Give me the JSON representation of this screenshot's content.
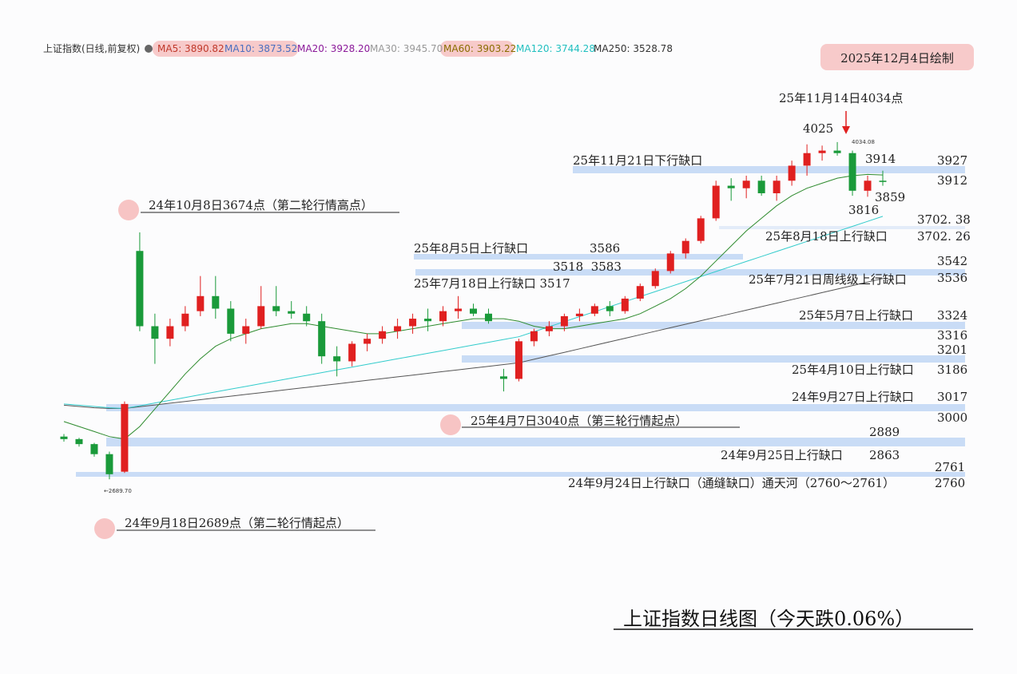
{
  "chart_data": {
    "type": "candlestick",
    "title": "上证指数日线图（今天跌0.06%）",
    "date_note": "2025年12月4日绘制",
    "indicator_legend": [
      {
        "text": "上证指数(日线,前复权)",
        "color": "#333333"
      },
      {
        "text": "MA5: 3890.82",
        "color": "#c0392b"
      },
      {
        "text": "MA10: 3873.52",
        "color": "#4a6fc0"
      },
      {
        "text": "MA20: 3928.20",
        "color": "#8b1a9a"
      },
      {
        "text": "MA30: 3945.70",
        "color": "#999999"
      },
      {
        "text": "MA60: 3903.22",
        "color": "#8a6d00"
      },
      {
        "text": "MA120: 3744.28",
        "color": "#22c0c0"
      },
      {
        "text": "MA250: 3528.78",
        "color": "#333333"
      }
    ],
    "annotations": [
      "25年11月14日4034点",
      "4025",
      "25年11月21日下行缺口",
      "3914",
      "3927",
      "3912",
      "3859",
      "3816",
      "24年10月8日3674点（第二轮行情高点）",
      "3702. 38",
      "25年8月18日上行缺口",
      "3702. 26",
      "25年8月5日上行缺口",
      "3586",
      "3518  3583",
      "3542",
      "25年7月18日上行缺口 3517",
      "25年7月21日周线级上行缺口",
      "3536",
      "25年5月7日上行缺口",
      "3324",
      "3316",
      "3201",
      "25年4月10日上行缺口",
      "3186",
      "24年9月27日上行缺口",
      "3017",
      "25年4月7日3040点（第三轮行情起点）",
      "3000",
      "2889",
      "24年9月25日上行缺口",
      "2863",
      "2761",
      "24年9月24日上行缺口（通缝缺口）通天河（2760～2761）",
      "2760",
      "24年9月18日2689点（第二轮行情起点）",
      "←2689.70",
      "4034.08"
    ],
    "categories": [
      null,
      null,
      null,
      null,
      null,
      null,
      null,
      null,
      null,
      null,
      null,
      null,
      null,
      null,
      null,
      null,
      null,
      null,
      null,
      null,
      null,
      null,
      null,
      null,
      null,
      null,
      null,
      null,
      null,
      null,
      null,
      null,
      null,
      null,
      null,
      null,
      null,
      null,
      null,
      null,
      null,
      null,
      null,
      null,
      null,
      null,
      null,
      null,
      null,
      null,
      null,
      null,
      null,
      null,
      null
    ],
    "open": [
      2860,
      2850,
      2830,
      2790,
      2720,
      3600,
      3300,
      3250,
      3300,
      3360,
      3420,
      3370,
      3270,
      3300,
      3380,
      3360,
      3350,
      3320,
      3180,
      3160,
      3230,
      3250,
      3280,
      3300,
      3330,
      3320,
      3360,
      3370,
      3350,
      3100,
      3090,
      3240,
      3280,
      3300,
      3340,
      3350,
      3380,
      3360,
      3410,
      3460,
      3520,
      3590,
      3640,
      3730,
      3860,
      3850,
      3880,
      3830,
      3880,
      3940,
      3990,
      4000,
      3990,
      3840,
      3880
    ],
    "high": [
      2870,
      2855,
      2835,
      2800,
      3000,
      3674,
      3350,
      3330,
      3380,
      3500,
      3500,
      3400,
      3330,
      3460,
      3460,
      3400,
      3380,
      3350,
      3220,
      3240,
      3270,
      3300,
      3330,
      3350,
      3370,
      3380,
      3420,
      3390,
      3370,
      3130,
      3250,
      3290,
      3320,
      3350,
      3370,
      3390,
      3400,
      3420,
      3470,
      3530,
      3600,
      3650,
      3740,
      3880,
      3890,
      3900,
      3900,
      3900,
      3960,
      4025,
      4020,
      4034,
      4000,
      3900,
      3920
    ],
    "low": [
      2840,
      2820,
      2780,
      2689.7,
      2715,
      3280,
      3150,
      3220,
      3280,
      3340,
      3330,
      3240,
      3230,
      3290,
      3340,
      3330,
      3300,
      3150,
      3100,
      3140,
      3200,
      3230,
      3250,
      3270,
      3280,
      3300,
      3330,
      3340,
      3310,
      3040,
      3080,
      3220,
      3260,
      3280,
      3320,
      3340,
      3340,
      3350,
      3400,
      3450,
      3510,
      3570,
      3630,
      3720,
      3800,
      3810,
      3820,
      3800,
      3860,
      3900,
      3960,
      3980,
      3820,
      3816,
      3860
    ],
    "close": [
      2850,
      2830,
      2790,
      2710,
      2990,
      3300,
      3250,
      3300,
      3350,
      3420,
      3370,
      3270,
      3300,
      3380,
      3360,
      3350,
      3320,
      3180,
      3160,
      3230,
      3250,
      3280,
      3300,
      3330,
      3320,
      3360,
      3370,
      3350,
      3320,
      3090,
      3240,
      3280,
      3300,
      3340,
      3350,
      3380,
      3360,
      3410,
      3460,
      3520,
      3590,
      3640,
      3730,
      3860,
      3850,
      3880,
      3830,
      3880,
      3940,
      3990,
      4000,
      3990,
      3840,
      3880,
      3875
    ],
    "up_color": "#e02020",
    "down_color": "#1a9a3a",
    "series": [
      {
        "color": "#555555",
        "values": [
          2985,
          2980,
          2975,
          2972,
          2972,
          2979,
          2986,
          2993,
          3000,
          3007,
          3014,
          3021,
          3028,
          3035,
          3042,
          3049,
          3056,
          3063,
          3070,
          3077,
          3084,
          3091,
          3098,
          3105,
          3112,
          3119,
          3126,
          3133,
          3140,
          3147,
          3154,
          3168,
          3182,
          3196,
          3210,
          3224,
          3238,
          3252,
          3266,
          3280,
          3294,
          3308,
          3322,
          3336,
          3350,
          3364,
          3378,
          3392,
          3406,
          3420,
          3434,
          3448,
          3462,
          3476,
          3490
        ]
      },
      {
        "color": "#33cccc",
        "values": [
          2990,
          2985,
          2980,
          2975,
          2972,
          2983,
          2994,
          3005,
          3016,
          3027,
          3038,
          3049,
          3060,
          3071,
          3082,
          3093,
          3104,
          3115,
          3126,
          3137,
          3148,
          3159,
          3170,
          3181,
          3192,
          3203,
          3214,
          3225,
          3236,
          3247,
          3258,
          3278,
          3298,
          3318,
          3338,
          3358,
          3378,
          3398,
          3418,
          3438,
          3458,
          3478,
          3498,
          3518,
          3538,
          3558,
          3578,
          3598,
          3618,
          3638,
          3658,
          3678,
          3698,
          3718,
          3738
        ]
      },
      {
        "color": "#2e8b2e",
        "values": [
          2920,
          2900,
          2880,
          2860,
          2850,
          2900,
          2970,
          3040,
          3110,
          3170,
          3220,
          3250,
          3270,
          3290,
          3300,
          3310,
          3310,
          3300,
          3290,
          3280,
          3270,
          3270,
          3280,
          3290,
          3300,
          3310,
          3320,
          3330,
          3330,
          3330,
          3320,
          3300,
          3290,
          3290,
          3300,
          3310,
          3320,
          3330,
          3350,
          3380,
          3410,
          3450,
          3500,
          3560,
          3620,
          3680,
          3730,
          3780,
          3820,
          3850,
          3870,
          3890,
          3900,
          3905,
          3903
        ]
      }
    ],
    "ylim": [
      2372,
      4282
    ]
  }
}
